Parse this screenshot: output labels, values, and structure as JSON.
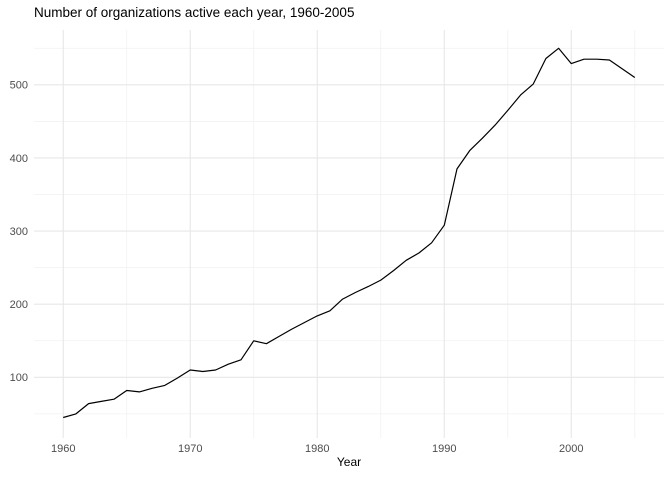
{
  "title": "Number of organizations active each year, 1960-2005",
  "chart_data": {
    "type": "line",
    "title": "Number of organizations active each year, 1960-2005",
    "xlabel": "Year",
    "ylabel": "",
    "x": [
      1960,
      1961,
      1962,
      1963,
      1964,
      1965,
      1966,
      1967,
      1968,
      1969,
      1970,
      1971,
      1972,
      1973,
      1974,
      1975,
      1976,
      1977,
      1978,
      1979,
      1980,
      1981,
      1982,
      1983,
      1984,
      1985,
      1986,
      1987,
      1988,
      1989,
      1990,
      1991,
      1992,
      1993,
      1994,
      1995,
      1996,
      1997,
      1998,
      1999,
      2000,
      2001,
      2002,
      2003,
      2004,
      2005
    ],
    "values": [
      45,
      50,
      64,
      67,
      70,
      82,
      80,
      85,
      89,
      99,
      110,
      108,
      110,
      118,
      124,
      150,
      146,
      156,
      166,
      175,
      184,
      191,
      207,
      216,
      224,
      233,
      246,
      260,
      270,
      284,
      308,
      385,
      410,
      427,
      445,
      465,
      486,
      501,
      536,
      550,
      529,
      535,
      535,
      534,
      522,
      510
    ],
    "x_ticks_major": [
      1960,
      1970,
      1980,
      1990,
      2000
    ],
    "x_ticks_minor": [
      1965,
      1975,
      1985,
      1995,
      2005
    ],
    "y_ticks_major": [
      100,
      200,
      300,
      400,
      500
    ],
    "y_ticks_minor": [
      50,
      150,
      250,
      350,
      450,
      550
    ],
    "xlim": [
      1957.7,
      2007.3
    ],
    "ylim": [
      17,
      575
    ],
    "grid": "major+minor",
    "legend": "none",
    "line_color": "#000000",
    "background_color": "#ffffff",
    "grid_major_color": "#e7e7e7",
    "grid_minor_color": "#f1f1f1",
    "axis_text_color": "#4d4d4d"
  }
}
